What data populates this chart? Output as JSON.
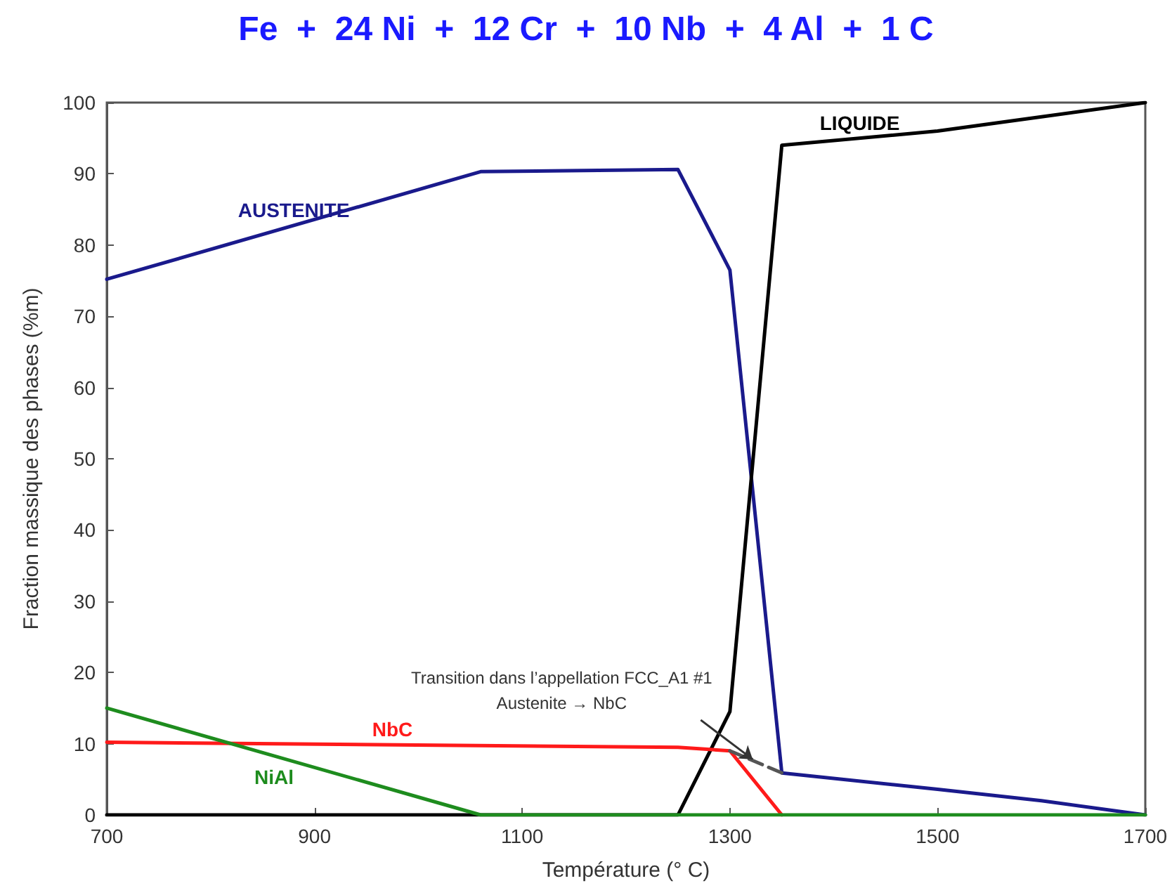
{
  "chart_data": {
    "type": "line",
    "title": "Fe  +  24 Ni  +  12 Cr  +  10 Nb  +  4 Al  +  1 C",
    "xlabel": "Température (° C)",
    "ylabel": "Fraction massique des phases (%m)",
    "xlim": [
      700,
      1700
    ],
    "xticks": [
      700,
      900,
      1100,
      1300,
      1500,
      1700
    ],
    "ylim": [
      0,
      100
    ],
    "yticks": [
      0,
      10,
      20,
      30,
      40,
      50,
      60,
      70,
      80,
      90,
      100
    ],
    "marker": "none",
    "line_style": "solid",
    "legend": false,
    "grid": false,
    "series": [
      {
        "name": "AUSTENITE",
        "color": "#1a1a8c",
        "x": [
          700,
          1060,
          1250,
          1300,
          1350,
          1500,
          1600,
          1700
        ],
        "values": [
          75.2,
          90.3,
          90.6,
          76.5,
          5.9,
          3.6,
          2,
          0
        ]
      },
      {
        "name": "LIQUIDE",
        "color": "#000000",
        "x": [
          700,
          1250,
          1300,
          1350,
          1500,
          1600,
          1700
        ],
        "values": [
          0,
          0,
          14.5,
          94,
          96,
          98,
          100
        ]
      },
      {
        "name": "NbC",
        "color": "#ff1a1a",
        "x": [
          700,
          1250,
          1300,
          1350
        ],
        "values": [
          10.2,
          9.5,
          9,
          0
        ]
      },
      {
        "name": "NiAl",
        "color": "#1e8c1e",
        "x": [
          700,
          1060,
          1700
        ],
        "values": [
          15,
          0,
          0
        ]
      },
      {
        "color": "#555555",
        "line_style": "dashed",
        "x": [
          1300,
          1350
        ],
        "values": [
          9,
          5.9
        ]
      }
    ],
    "annotations": [
      {
        "text": "Transition dans l’appellation FCC_A1 #1\nAustenite → NbC",
        "x": 1322,
        "y": 7.8
      }
    ]
  }
}
